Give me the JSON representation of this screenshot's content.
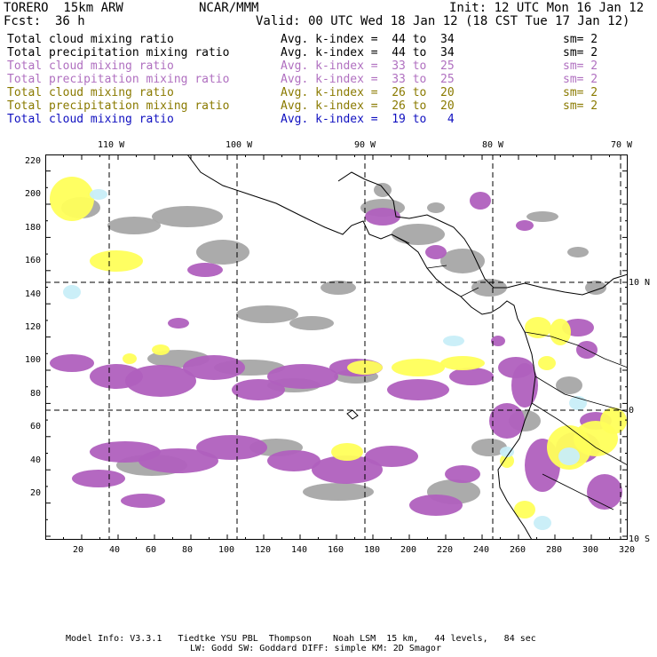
{
  "header": {
    "model": "TORERO  15km ARW",
    "center": "NCAR/MMM",
    "init": "Init: 12 UTC Mon 16 Jan 12",
    "fcst_label": "Fcst:",
    "fcst_value": "36 h",
    "valid": "Valid: 00 UTC Wed 18 Jan 12 (18 CST Tue 17 Jan 12)"
  },
  "legend": [
    {
      "field": "Total cloud mixing ratio",
      "index": "Avg. k-index =  44 to  34",
      "sm": "sm= 2",
      "color": "#000000"
    },
    {
      "field": "Total precipitation mixing ratio",
      "index": "Avg. k-index =  44 to  34",
      "sm": "sm= 2",
      "color": "#000000"
    },
    {
      "field": "Total cloud mixing ratio",
      "index": "Avg. k-index =  33 to  25",
      "sm": "sm= 2",
      "color": "#b070c0"
    },
    {
      "field": "Total precipitation mixing ratio",
      "index": "Avg. k-index =  33 to  25",
      "sm": "sm= 2",
      "color": "#b070c0"
    },
    {
      "field": "Total cloud mixing ratio",
      "index": "Avg. k-index =  26 to  20",
      "sm": "sm= 2",
      "color": "#8a7a00"
    },
    {
      "field": "Total precipitation mixing ratio",
      "index": "Avg. k-index =  26 to  20",
      "sm": "sm= 2",
      "color": "#8a7a00"
    },
    {
      "field": "Total cloud mixing ratio",
      "index": "Avg. k-index =  19 to   4",
      "sm": "",
      "color": "#1010c0"
    }
  ],
  "map": {
    "lon_labels": [
      "110 W",
      "100 W",
      "90 W",
      "80 W",
      "70 W"
    ],
    "lat_labels": [
      "10 N",
      "0",
      "10 S"
    ],
    "x_ticks": [
      "20",
      "40",
      "60",
      "80",
      "100",
      "120",
      "140",
      "160",
      "180",
      "200",
      "220",
      "240",
      "260",
      "280",
      "300",
      "320"
    ],
    "y_ticks": [
      "220",
      "200",
      "180",
      "160",
      "140",
      "120",
      "100",
      "80",
      "60",
      "40",
      "20"
    ],
    "colors": {
      "gray": "#a6a6a6",
      "purple": "#b060be",
      "yellow": "#ffff5a",
      "lightblue": "#c8eef8"
    }
  },
  "footer": {
    "line1": "Model Info: V3.3.1   Tiedtke YSU PBL  Thompson    Noah LSM  15 km,   44 levels,   84 sec",
    "line2": "LW: Godd SW: Goddard DIFF: simple KM: 2D Smagor"
  }
}
